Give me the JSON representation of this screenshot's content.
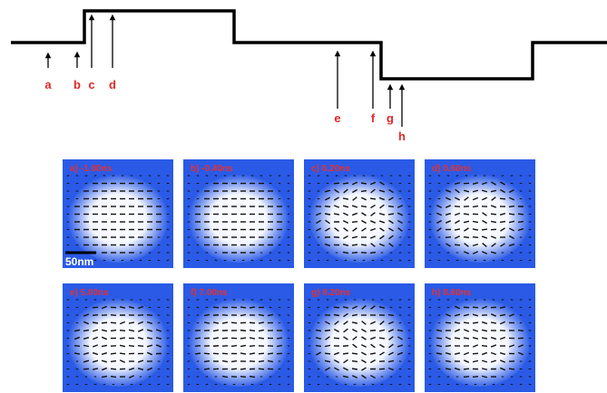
{
  "markers": [
    "a",
    "b",
    "c",
    "d",
    "e",
    "f",
    "g",
    "h"
  ],
  "panels": [
    "a) -1.00ns",
    "b) -0.40ns",
    "c) 0.20ns",
    "d) 0.60ns",
    "e) 5.00ns",
    "f) 7.00ns",
    "g) 8.20ns",
    "h) 8.60ns"
  ],
  "scale_bar": "50nm"
}
